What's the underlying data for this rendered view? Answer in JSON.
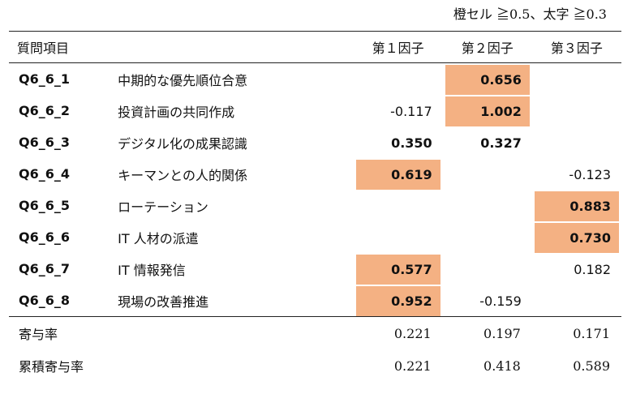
{
  "legend": "橙セル ≧0.5、太字 ≧0.3",
  "headers": {
    "item": "質問項目",
    "f1": "第１因子",
    "f2": "第２因子",
    "f3": "第３因子"
  },
  "rows": [
    {
      "code": "Q6_6_1",
      "label": "中期的な優先順位合意",
      "f1": "",
      "f2": "0.656",
      "f3": ""
    },
    {
      "code": "Q6_6_2",
      "label": "投資計画の共同作成",
      "f1": "-0.117",
      "f2": "1.002",
      "f3": ""
    },
    {
      "code": "Q6_6_3",
      "label": "デジタル化の成果認識",
      "f1": "0.350",
      "f2": "0.327",
      "f3": ""
    },
    {
      "code": "Q6_6_4",
      "label": "キーマンとの人的関係",
      "f1": "0.619",
      "f2": "",
      "f3": "-0.123"
    },
    {
      "code": "Q6_6_5",
      "label": "ローテーション",
      "f1": "",
      "f2": "",
      "f3": "0.883"
    },
    {
      "code": "Q6_6_6",
      "label": "IT 人材の派遣",
      "f1": "",
      "f2": "",
      "f3": "0.730"
    },
    {
      "code": "Q6_6_7",
      "label": "IT 情報発信",
      "f1": "0.577",
      "f2": "",
      "f3": "0.182"
    },
    {
      "code": "Q6_6_8",
      "label": "現場の改善推進",
      "f1": "0.952",
      "f2": "-0.159",
      "f3": ""
    }
  ],
  "summary": [
    {
      "label": "寄与率",
      "f1": "0.221",
      "f2": "0.197",
      "f3": "0.171"
    },
    {
      "label": "累積寄与率",
      "f1": "0.221",
      "f2": "0.418",
      "f3": "0.589"
    }
  ],
  "colors": {
    "highlight": "#f4b183",
    "rule": "#222222"
  }
}
